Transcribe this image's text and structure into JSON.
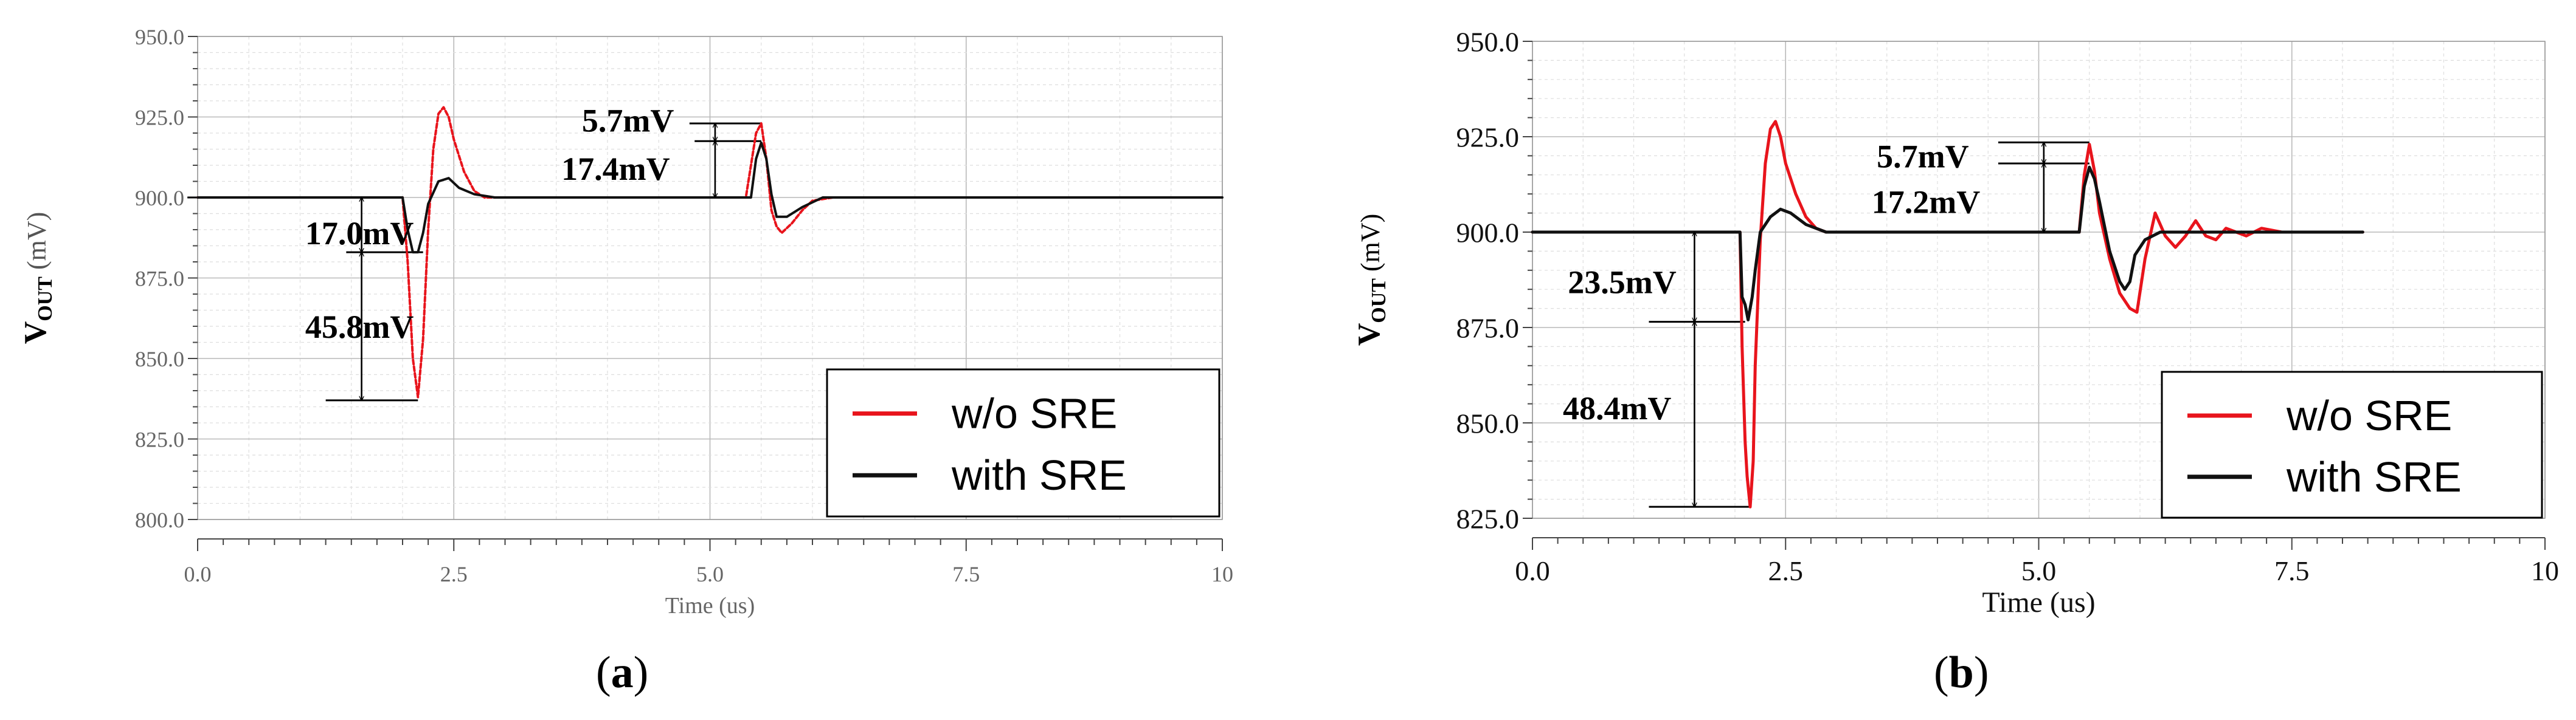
{
  "figure": {
    "panel_a_label": "(a)",
    "panel_b_label": "(b)"
  },
  "chart_data": [
    {
      "panel": "a",
      "type": "line",
      "xlabel": "Time (us)",
      "ylabel_main": "V",
      "ylabel_sub": "OUT",
      "ylabel_unit": " (mV)",
      "xlim": [
        0,
        10
      ],
      "ylim": [
        800,
        950
      ],
      "xticks": [
        0,
        2.5,
        5,
        7.5,
        10
      ],
      "xtick_labels": [
        "0.0",
        "2.5",
        "5.0",
        "7.5",
        "10"
      ],
      "yticks": [
        800,
        825,
        850,
        875,
        900,
        925,
        950
      ],
      "ytick_labels": [
        "800.0",
        "825.0",
        "850.0",
        "875.0",
        "900.0",
        "925.0",
        "950.0"
      ],
      "grid": true,
      "legend_position": "bottom-right",
      "series": [
        {
          "name": "w/o SRE",
          "color": "#e8141c",
          "dashed": true,
          "x": [
            0,
            2.0,
            2.05,
            2.1,
            2.15,
            2.2,
            2.25,
            2.3,
            2.35,
            2.4,
            2.45,
            2.5,
            2.6,
            2.7,
            2.8,
            2.9,
            3.0,
            3.5,
            4.5,
            5.35,
            5.4,
            5.45,
            5.5,
            5.55,
            5.6,
            5.65,
            5.7,
            5.8,
            5.9,
            6.0,
            6.2,
            6.5,
            10
          ],
          "y": [
            900,
            900,
            880,
            850,
            838,
            856,
            890,
            915,
            926,
            928,
            925,
            918,
            908,
            902,
            900,
            900,
            900,
            900,
            900,
            900,
            910,
            920,
            923,
            912,
            896,
            891,
            889,
            892,
            896,
            899,
            900,
            900,
            900
          ]
        },
        {
          "name": "with SRE",
          "color": "#111111",
          "dashed": false,
          "x": [
            0,
            2.0,
            2.05,
            2.1,
            2.15,
            2.2,
            2.25,
            2.35,
            2.45,
            2.55,
            2.7,
            2.9,
            3.5,
            5.4,
            5.45,
            5.5,
            5.55,
            5.6,
            5.65,
            5.75,
            5.9,
            6.1,
            6.5,
            10
          ],
          "y": [
            900,
            900,
            890,
            883,
            883,
            889,
            898,
            905,
            906,
            903,
            901,
            900,
            900,
            900,
            912,
            917,
            912,
            901,
            894,
            894,
            897,
            900,
            900,
            900
          ]
        }
      ],
      "annotations": [
        {
          "text": "17.0mV",
          "x": 1.05,
          "y": 889
        },
        {
          "text": "45.8mV",
          "x": 1.05,
          "y": 860
        },
        {
          "text": "5.7mV",
          "x": 3.75,
          "y": 924
        },
        {
          "text": "17.4mV",
          "x": 3.55,
          "y": 909
        }
      ],
      "measure_lines": [
        {
          "y": 900,
          "x1": -0.1,
          "x2": 2.0
        },
        {
          "y": 883,
          "x1": 1.45,
          "x2": 2.2
        },
        {
          "y": 837,
          "x1": 1.25,
          "x2": 2.15
        },
        {
          "y": 923,
          "x1": 4.8,
          "x2": 5.5
        },
        {
          "y": 917.5,
          "x1": 4.85,
          "x2": 5.5
        }
      ],
      "arrows": [
        {
          "x": 1.6,
          "y1": 900,
          "y2": 883
        },
        {
          "x": 1.6,
          "y1": 883,
          "y2": 837
        },
        {
          "x": 5.05,
          "y1": 923,
          "y2": 917.5
        },
        {
          "x": 5.05,
          "y1": 917.5,
          "y2": 900
        }
      ]
    },
    {
      "panel": "b",
      "type": "line",
      "xlabel": "Time (us)",
      "ylabel_main": "V",
      "ylabel_sub": "OUT",
      "ylabel_unit": " (mV)",
      "xlim": [
        0,
        10
      ],
      "ylim": [
        825,
        950
      ],
      "xticks": [
        0,
        2.5,
        5,
        7.5,
        10
      ],
      "xtick_labels": [
        "0.0",
        "2.5",
        "5.0",
        "7.5",
        "10"
      ],
      "yticks": [
        825,
        850,
        875,
        900,
        925,
        950
      ],
      "ytick_labels": [
        "825.0",
        "850.0",
        "875.0",
        "900.0",
        "925.0",
        "950.0"
      ],
      "grid": true,
      "legend_position": "bottom-right",
      "series": [
        {
          "name": "w/o SRE",
          "color": "#e8141c",
          "dashed": false,
          "x": [
            0,
            2.05,
            2.07,
            2.1,
            2.12,
            2.15,
            2.18,
            2.2,
            2.25,
            2.3,
            2.35,
            2.4,
            2.45,
            2.5,
            2.6,
            2.7,
            2.8,
            2.9,
            3.0,
            3.5,
            5.4,
            5.45,
            5.5,
            5.55,
            5.6,
            5.7,
            5.8,
            5.9,
            5.97,
            6.05,
            6.15,
            6.25,
            6.35,
            6.45,
            6.55,
            6.65,
            6.75,
            6.85,
            6.95,
            7.05,
            7.2,
            7.4,
            7.6,
            8.0,
            8.2
          ],
          "y": [
            900,
            900,
            870,
            845,
            836,
            828,
            840,
            865,
            898,
            918,
            927,
            929,
            925,
            918,
            910,
            904,
            901,
            900,
            900,
            900,
            900,
            915,
            923,
            916,
            905,
            893,
            884,
            880,
            879,
            893,
            905,
            899,
            896,
            899,
            903,
            899,
            898,
            901,
            900,
            899,
            901,
            900,
            900,
            900,
            900
          ]
        },
        {
          "name": "with SRE",
          "color": "#111111",
          "dashed": false,
          "x": [
            0,
            2.05,
            2.07,
            2.1,
            2.13,
            2.17,
            2.2,
            2.25,
            2.35,
            2.45,
            2.55,
            2.7,
            2.9,
            3.1,
            3.5,
            5.4,
            5.45,
            5.5,
            5.55,
            5.6,
            5.7,
            5.8,
            5.85,
            5.9,
            5.95,
            6.05,
            6.2,
            6.5,
            8.2
          ],
          "y": [
            900,
            900,
            883,
            881,
            877,
            883,
            890,
            900,
            904,
            906,
            905,
            902,
            900,
            900,
            900,
            900,
            912,
            917,
            914,
            908,
            895,
            887,
            885,
            887,
            894,
            898,
            900,
            900,
            900
          ]
        }
      ],
      "annotations": [
        {
          "text": "5.7mV",
          "x": 3.4,
          "y": 920
        },
        {
          "text": "17.2mV",
          "x": 3.35,
          "y": 908
        },
        {
          "text": "23.5mV",
          "x": 0.35,
          "y": 887
        },
        {
          "text": "48.4mV",
          "x": 0.3,
          "y": 854
        }
      ],
      "measure_lines": [
        {
          "y": 923.5,
          "x1": 4.6,
          "x2": 5.5
        },
        {
          "y": 918,
          "x1": 4.6,
          "x2": 5.5
        },
        {
          "y": 900,
          "x1": 1.55,
          "x2": 2.05
        },
        {
          "y": 876.5,
          "x1": 1.15,
          "x2": 2.1
        },
        {
          "y": 828,
          "x1": 1.15,
          "x2": 2.15
        }
      ],
      "arrows": [
        {
          "x": 5.05,
          "y1": 923.5,
          "y2": 918
        },
        {
          "x": 5.05,
          "y1": 918,
          "y2": 900
        },
        {
          "x": 1.6,
          "y1": 900,
          "y2": 876.5
        },
        {
          "x": 1.6,
          "y1": 876.5,
          "y2": 828
        }
      ]
    }
  ]
}
